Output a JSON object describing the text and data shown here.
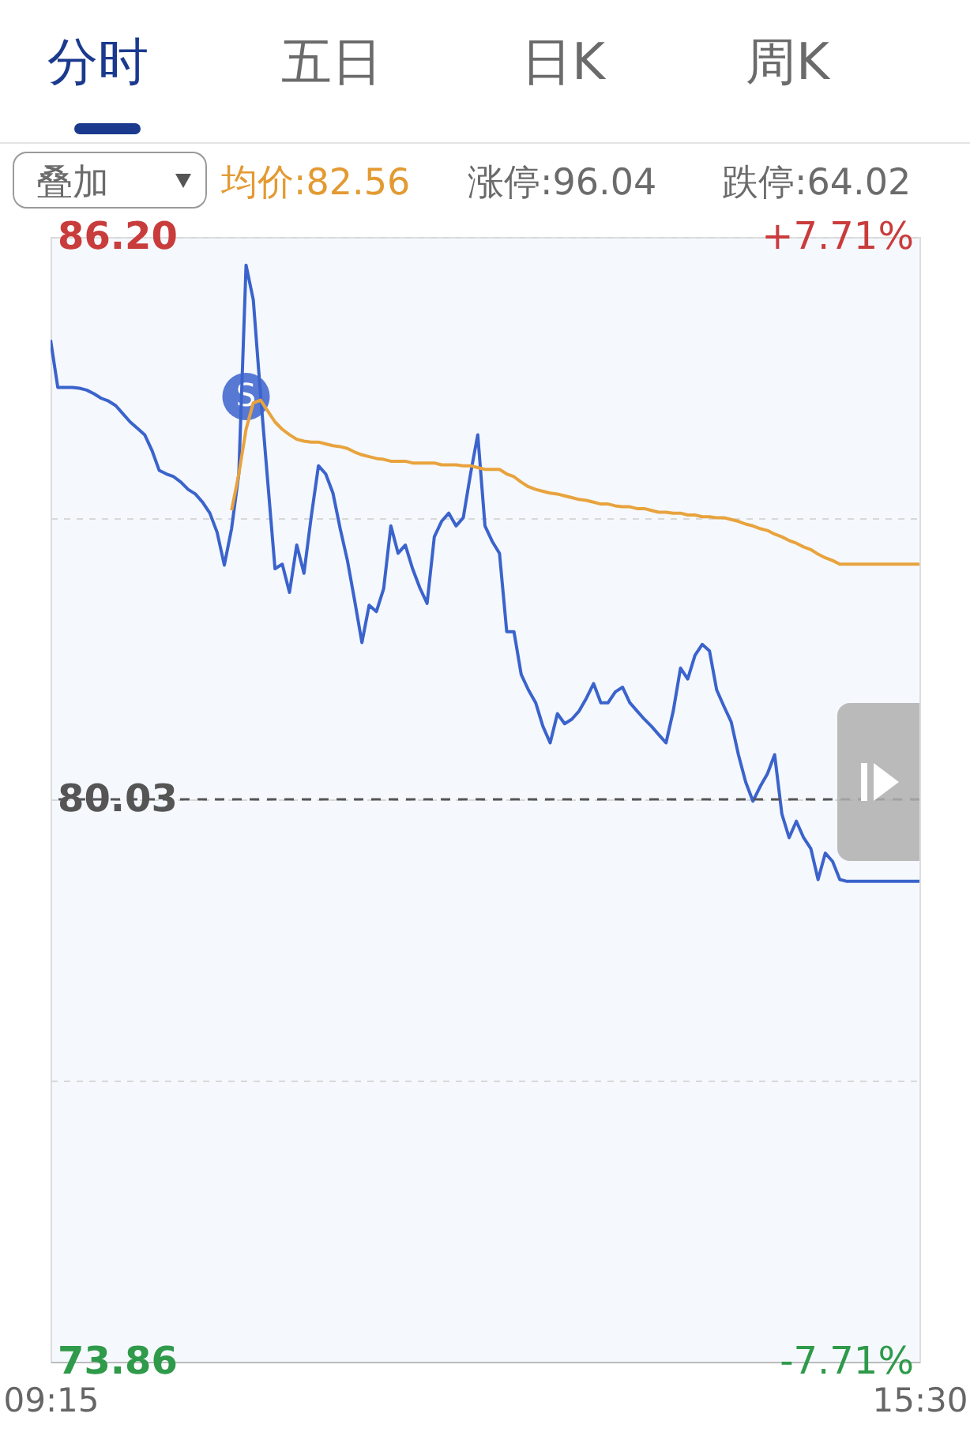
{
  "chart_data": {
    "type": "line",
    "categories": [
      "09:15",
      null,
      null,
      null,
      null,
      null,
      null,
      null,
      null,
      null,
      null,
      null,
      null,
      null,
      null,
      null,
      null,
      null,
      null,
      null,
      null,
      null,
      null,
      null,
      null,
      null,
      null,
      null,
      null,
      null,
      null,
      null,
      null,
      null,
      null,
      null,
      null,
      null,
      null,
      null,
      null,
      null,
      null,
      null,
      null,
      null,
      null,
      null,
      null,
      null,
      null,
      null,
      null,
      null,
      null,
      null,
      null,
      null,
      null,
      null,
      null,
      null,
      null,
      null,
      null,
      null,
      null,
      null,
      null,
      null,
      null,
      null,
      null,
      null,
      null,
      null,
      null,
      null,
      null,
      null,
      null,
      null,
      null,
      null,
      null,
      null,
      null,
      null,
      null,
      null,
      null,
      null,
      null,
      null,
      null,
      null,
      null,
      null,
      null,
      null,
      null,
      null,
      null,
      null,
      null,
      null,
      null,
      null,
      null,
      null,
      null,
      null,
      null,
      null,
      null,
      null,
      null,
      null,
      null,
      null,
      "15:30"
    ],
    "series": [
      {
        "color": "#3b63cc",
        "values": [
          85.07,
          84.55,
          84.55,
          84.55,
          84.54,
          84.52,
          84.48,
          84.43,
          84.4,
          84.35,
          84.26,
          84.17,
          84.1,
          84.03,
          83.86,
          83.64,
          83.6,
          83.57,
          83.51,
          83.43,
          83.38,
          83.29,
          83.17,
          82.96,
          82.6,
          83.0,
          83.6,
          85.89,
          85.51,
          84.47,
          83.51,
          82.56,
          82.61,
          82.3,
          82.82,
          82.51,
          83.13,
          83.69,
          83.6,
          83.39,
          83.0,
          82.65,
          82.21,
          81.75,
          82.16,
          82.09,
          82.34,
          83.03,
          82.73,
          82.82,
          82.56,
          82.35,
          82.18,
          82.91,
          83.08,
          83.17,
          83.03,
          83.12,
          83.6,
          84.03,
          83.03,
          82.86,
          82.73,
          81.87,
          81.87,
          81.4,
          81.23,
          81.09,
          80.83,
          80.65,
          80.97,
          80.86,
          80.91,
          81.0,
          81.14,
          81.3,
          81.09,
          81.09,
          81.21,
          81.26,
          81.09,
          81.0,
          80.91,
          80.83,
          80.74,
          80.65,
          81.0,
          81.47,
          81.35,
          81.61,
          81.73,
          81.66,
          81.23,
          81.05,
          80.88,
          80.52,
          80.22,
          80.01,
          80.17,
          80.31,
          80.52,
          79.87,
          79.61,
          79.79,
          79.61,
          79.49,
          79.15,
          79.44,
          79.35,
          79.15,
          79.13,
          79.13,
          79.13,
          79.13,
          79.13,
          79.13,
          79.13,
          79.13,
          79.13,
          79.13,
          79.13
        ]
      },
      {
        "color": "#e8a33d",
        "values": [
          null,
          null,
          null,
          null,
          null,
          null,
          null,
          null,
          null,
          null,
          null,
          null,
          null,
          null,
          null,
          null,
          null,
          null,
          null,
          null,
          null,
          null,
          null,
          null,
          null,
          83.2,
          83.6,
          84.09,
          84.38,
          84.41,
          84.29,
          84.17,
          84.09,
          84.03,
          83.98,
          83.96,
          83.95,
          83.95,
          83.93,
          83.91,
          83.9,
          83.88,
          83.84,
          83.81,
          83.79,
          83.77,
          83.76,
          83.74,
          83.74,
          83.74,
          83.72,
          83.72,
          83.72,
          83.72,
          83.7,
          83.7,
          83.7,
          83.69,
          83.69,
          83.67,
          83.65,
          83.65,
          83.65,
          83.6,
          83.57,
          83.51,
          83.46,
          83.43,
          83.41,
          83.39,
          83.38,
          83.36,
          83.34,
          83.32,
          83.31,
          83.29,
          83.27,
          83.27,
          83.25,
          83.24,
          83.24,
          83.22,
          83.22,
          83.2,
          83.18,
          83.18,
          83.17,
          83.17,
          83.15,
          83.15,
          83.13,
          83.13,
          83.12,
          83.12,
          83.1,
          83.08,
          83.05,
          83.03,
          83.0,
          82.98,
          82.94,
          82.91,
          82.87,
          82.84,
          82.8,
          82.77,
          82.72,
          82.68,
          82.65,
          82.61,
          82.61,
          82.61,
          82.61,
          82.61,
          82.61,
          82.61,
          82.61,
          82.61,
          82.61,
          82.61,
          82.61
        ]
      }
    ],
    "ylim": [
      73.86,
      86.2
    ],
    "yticks": [
      {
        "value": 86.2,
        "label": "86.20"
      },
      {
        "value": 83.115,
        "label": null
      },
      {
        "value": 80.03,
        "label": "80.03"
      },
      {
        "value": 76.945,
        "label": null
      },
      {
        "value": 73.86,
        "label": "73.86"
      }
    ],
    "y2lim": [
      -7.71,
      7.71
    ],
    "y2ticks": [
      {
        "value": 7.71,
        "label": "+7.71%"
      },
      {
        "value": -7.71,
        "label": "-7.71%"
      }
    ],
    "ref_lines": [
      {
        "axis": "y",
        "value": 80.03,
        "color": "#555555",
        "line_style": "dashed"
      }
    ],
    "grid": "y",
    "annotations": [
      "分时",
      "五日",
      "日K",
      "周K",
      "叠加",
      "均价:82.56",
      "涨停:96.04",
      "跌停:64.02",
      {
        "text": "S",
        "y": 84.45
      }
    ]
  }
}
